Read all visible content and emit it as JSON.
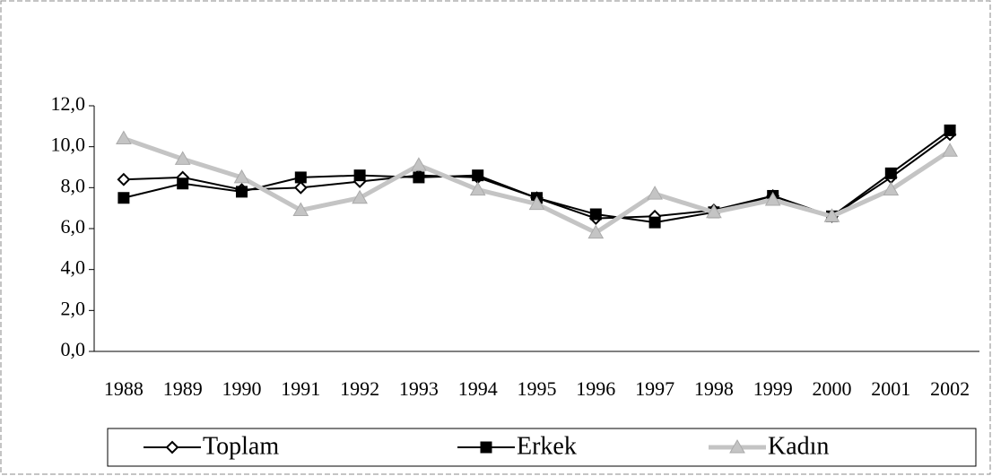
{
  "chart_data": {
    "type": "line",
    "categories": [
      "1988",
      "1989",
      "1990",
      "1991",
      "1992",
      "1993",
      "1994",
      "1995",
      "1996",
      "1997",
      "1998",
      "1999",
      "2000",
      "2001",
      "2002"
    ],
    "series": [
      {
        "name": "Toplam",
        "color": "#000000",
        "marker": "diamond",
        "values": [
          8.4,
          8.5,
          7.9,
          8.0,
          8.3,
          8.6,
          8.5,
          7.5,
          6.5,
          6.6,
          6.9,
          7.6,
          6.6,
          8.5,
          10.6
        ]
      },
      {
        "name": "Erkek",
        "color": "#000000",
        "marker": "square",
        "values": [
          7.5,
          8.2,
          7.8,
          8.5,
          8.6,
          8.5,
          8.6,
          7.5,
          6.7,
          6.3,
          6.8,
          7.6,
          6.6,
          8.7,
          10.8
        ]
      },
      {
        "name": "Kadın",
        "color": "#c4c4c4",
        "marker": "triangle",
        "values": [
          10.4,
          9.4,
          8.5,
          6.9,
          7.5,
          9.1,
          7.9,
          7.2,
          5.8,
          7.7,
          6.8,
          7.4,
          6.6,
          7.9,
          9.8
        ]
      }
    ],
    "ylim": [
      0,
      12
    ],
    "yticks": [
      {
        "value": 0,
        "label": "0,0"
      },
      {
        "value": 2,
        "label": "2,0"
      },
      {
        "value": 4,
        "label": "4,0"
      },
      {
        "value": 6,
        "label": "6,0"
      },
      {
        "value": 8,
        "label": "8,0"
      },
      {
        "value": 10,
        "label": "10,0"
      },
      {
        "value": 12,
        "label": "12,0"
      }
    ],
    "grid": false,
    "legend": "bottom"
  }
}
